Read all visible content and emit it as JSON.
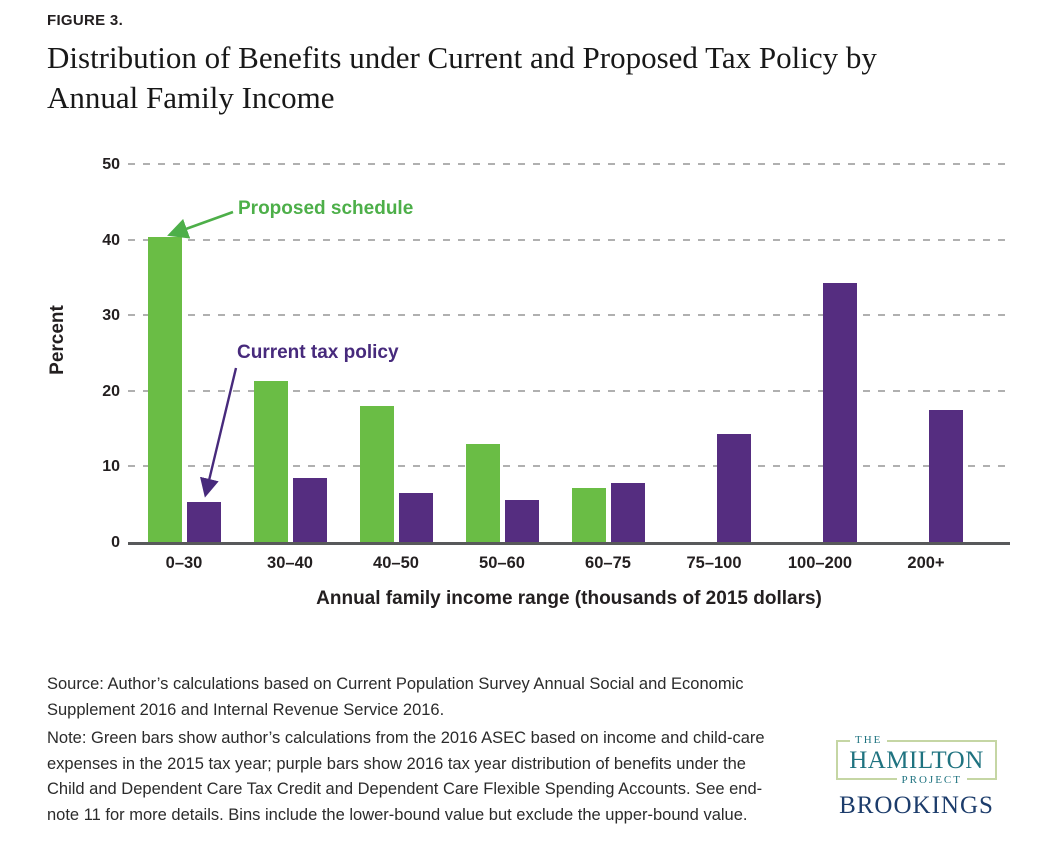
{
  "figure_label": "FIGURE 3.",
  "title_lines": [
    "Distribution of Benefits under Current and Proposed Tax Policy by",
    "Annual Family Income"
  ],
  "chart_data": {
    "type": "bar",
    "title": "Distribution of Benefits under Current and Proposed Tax Policy by Annual Family Income",
    "categories": [
      "0–30",
      "30–40",
      "40–50",
      "50–60",
      "60–75",
      "75–100",
      "100–200",
      "200+"
    ],
    "series": [
      {
        "name": "Proposed schedule",
        "color": "#6abd45",
        "values": [
          40.3,
          21.3,
          18.0,
          13.0,
          7.1,
          null,
          null,
          null
        ]
      },
      {
        "name": "Current tax policy",
        "color": "#552d80",
        "values": [
          5.3,
          8.5,
          6.5,
          5.5,
          7.8,
          14.3,
          34.3,
          17.4
        ]
      }
    ],
    "xlabel": "Annual family income range (thousands of 2015 dollars)",
    "ylabel": "Percent",
    "ylim": [
      0,
      50
    ],
    "yticks": [
      0,
      10,
      20,
      30,
      40,
      50
    ],
    "grid": "horizontal dashed",
    "legend_position": "in-plot annotations with arrows"
  },
  "source_lines": [
    "Source: Author’s calculations based on Current Population Survey Annual Social and Economic",
    "Supplement 2016 and Internal Revenue Service 2016."
  ],
  "note_lines": [
    "Note: Green bars show author’s calculations from the 2016 ASEC based on income and child-care",
    "expenses in the 2015 tax year; purple bars show 2016 tax year distribution of benefits under the",
    "Child and Dependent Care Tax Credit and Dependent Care Flexible Spending Accounts. See end-",
    "note 11 for more details. Bins include the lower-bound value but exclude the upper-bound value."
  ],
  "logo": {
    "the": "THE",
    "hamilton": "HAMILTON",
    "project": "PROJECT",
    "brookings": "BROOKINGS",
    "teal": "#1f7380",
    "navy": "#1c3c6b",
    "border": "#c5d6a4"
  },
  "colors": {
    "proposed_green": "#6abd45",
    "current_purple": "#552d80",
    "annotation_green": "#4daf49",
    "annotation_purple": "#472a7c",
    "gridline": "#b0b0b0",
    "axis": "#58595b"
  }
}
